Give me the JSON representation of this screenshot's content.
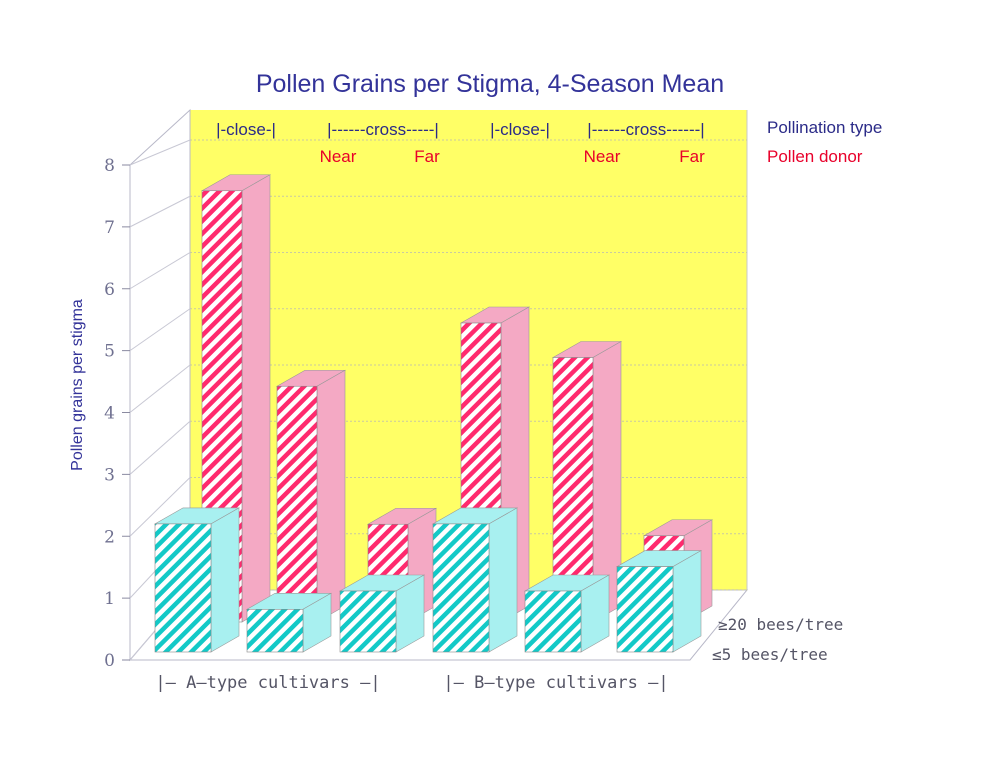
{
  "chart_data": {
    "type": "bar",
    "title": "Pollen Grains per Stigma, 4-Season Mean",
    "ylabel": "Pollen grains per stigma",
    "ylim": [
      0,
      8
    ],
    "y_ticks": [
      "0",
      "1",
      "2",
      "3",
      "4",
      "5",
      "6",
      "7",
      "8"
    ],
    "pollination_type_label": "Pollination type",
    "pollen_donor_label": "Pollen donor",
    "pollination_types": [
      "|-close-|",
      "|------cross-----|",
      "|-close-|",
      "|------cross------|"
    ],
    "pollen_donors": [
      "Near",
      "Far",
      "Near",
      "Far"
    ],
    "categories": [
      "A close",
      "A cross Near",
      "A cross Far",
      "B close",
      "B cross Near",
      "B cross Far"
    ],
    "group_labels": [
      "|— A–type cultivars —|",
      "|— B–type cultivars —|"
    ],
    "series": [
      {
        "name": "≥20 bees/tree",
        "color": "#ff2a6e",
        "face_color": "#f4a9c4",
        "values": [
          7.5,
          4.1,
          1.7,
          5.2,
          4.6,
          1.5
        ]
      },
      {
        "name": "≤5 bees/tree",
        "color": "#13c9c7",
        "face_color": "#a8f0f0",
        "values": [
          2.1,
          0.7,
          1.0,
          2.1,
          1.0,
          1.4
        ]
      }
    ],
    "back_wall_color": "#ffff66",
    "grid": true
  }
}
